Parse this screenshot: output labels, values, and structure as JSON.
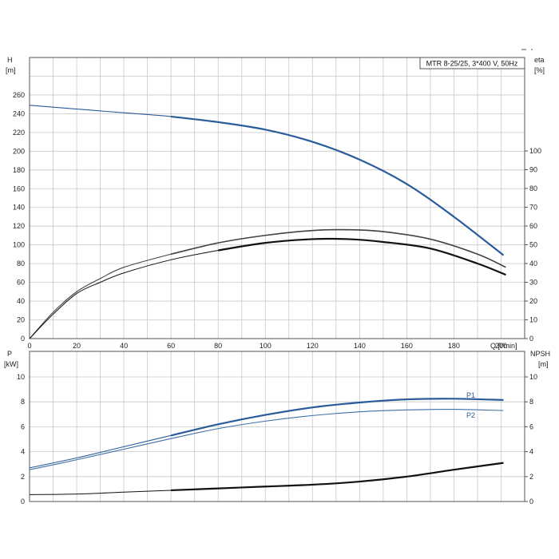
{
  "colors": {
    "head_curve": "#2a5c9a",
    "p1_curve": "#2a5c9a",
    "p2_curve": "#3f6fa8",
    "eta_outer": "#444444",
    "eta_inner": "#111111",
    "npsh_curve": "#111111",
    "grid": "#c8c8c8"
  },
  "chart_data": [
    {
      "type": "line",
      "panel": "top",
      "title": "MTR 8-25/25, 3*400 V, 50Hz",
      "xlabel": "Q [l/min]",
      "ylabel_left": "H [m]",
      "ylabel_left_parts": [
        "H",
        "[m]"
      ],
      "ylabel_right_parts": [
        "eta",
        "[%]"
      ],
      "xlim": [
        0,
        210
      ],
      "ylim_left": [
        0,
        280
      ],
      "ylim_right": [
        0,
        100
      ],
      "x_ticks": [
        "0",
        "20",
        "40",
        "60",
        "80",
        "100",
        "120",
        "140",
        "160",
        "180",
        "200"
      ],
      "y_ticks_left": [
        "0",
        "20",
        "40",
        "60",
        "80",
        "100",
        "120",
        "140",
        "160",
        "180",
        "200",
        "220",
        "240",
        "260"
      ],
      "y_ticks_right": [
        "0",
        "10",
        "20",
        "30",
        "40",
        "50",
        "60",
        "70",
        "80",
        "90",
        "100"
      ],
      "grid": true,
      "series": [
        {
          "axis": "left",
          "x": [
            0,
            20,
            40,
            60,
            80,
            100,
            120,
            140,
            160,
            180,
            201
          ],
          "y": [
            249,
            245,
            241,
            237,
            231,
            223,
            210,
            191,
            165,
            130,
            89
          ]
        },
        {
          "axis": "right",
          "x": [
            0,
            10,
            20,
            30,
            40,
            60,
            80,
            100,
            120,
            135,
            150,
            170,
            190,
            202
          ],
          "y": [
            0,
            14,
            25,
            32,
            38,
            45,
            51,
            55,
            57.6,
            58,
            57,
            53,
            45,
            38
          ]
        },
        {
          "axis": "right",
          "x": [
            0,
            10,
            20,
            30,
            40,
            60,
            80,
            100,
            120,
            135,
            150,
            170,
            190,
            202
          ],
          "y": [
            0,
            13,
            24,
            30,
            35,
            42,
            47,
            51,
            53,
            53,
            51.5,
            48,
            40,
            34
          ]
        }
      ]
    },
    {
      "type": "line",
      "panel": "bottom",
      "xlabel": "",
      "ylabel_left_parts": [
        "P",
        "[kW]"
      ],
      "ylabel_right_parts": [
        "NPSH",
        "[m]"
      ],
      "xlim": [
        0,
        210
      ],
      "ylim_left": [
        0,
        12
      ],
      "ylim_right": [
        0,
        12
      ],
      "y_ticks_left": [
        "0",
        "2",
        "4",
        "6",
        "8",
        "10"
      ],
      "y_ticks_right": [
        "0",
        "2",
        "4",
        "6",
        "8",
        "10"
      ],
      "grid": true,
      "series": [
        {
          "name": "P1",
          "axis": "left",
          "x": [
            0,
            20,
            40,
            60,
            80,
            100,
            120,
            140,
            160,
            180,
            201
          ],
          "y": [
            2.7,
            3.5,
            4.4,
            5.3,
            6.2,
            6.95,
            7.55,
            7.95,
            8.2,
            8.25,
            8.15
          ]
        },
        {
          "name": "P2",
          "axis": "left",
          "x": [
            0,
            20,
            40,
            60,
            80,
            100,
            120,
            140,
            160,
            180,
            201
          ],
          "y": [
            2.55,
            3.35,
            4.2,
            5.05,
            5.85,
            6.45,
            6.9,
            7.2,
            7.35,
            7.4,
            7.3
          ]
        },
        {
          "axis": "right",
          "x": [
            0,
            20,
            40,
            60,
            80,
            100,
            120,
            140,
            160,
            180,
            201
          ],
          "y": [
            0.55,
            0.6,
            0.75,
            0.9,
            1.05,
            1.2,
            1.35,
            1.6,
            2.0,
            2.55,
            3.1
          ]
        }
      ]
    }
  ]
}
